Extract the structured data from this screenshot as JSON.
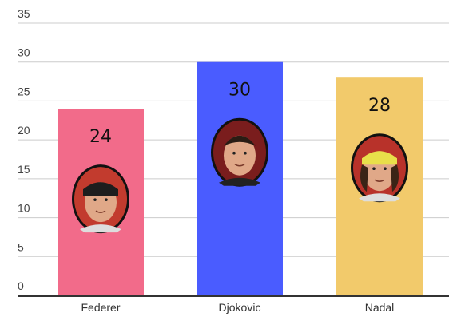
{
  "chart_data": {
    "type": "bar",
    "title": "",
    "xlabel": "",
    "ylabel": "",
    "categories": [
      "Federer",
      "Djokovic",
      "Nadal"
    ],
    "values": [
      24,
      30,
      28
    ],
    "data_labels": [
      "24",
      "30",
      "28"
    ],
    "colors": [
      "#f26b8a",
      "#4a5cff",
      "#f2ca6b"
    ],
    "ylim": [
      0,
      35
    ],
    "yticks": [
      0,
      5,
      10,
      15,
      20,
      25,
      30,
      35
    ],
    "ytick_labels": [
      "0",
      "5",
      "10",
      "15",
      "20",
      "25",
      "30",
      "35"
    ],
    "grid": true,
    "legend": "none",
    "bar_icons": [
      "federer-portrait-icon",
      "djokovic-portrait-icon",
      "nadal-portrait-icon"
    ]
  }
}
